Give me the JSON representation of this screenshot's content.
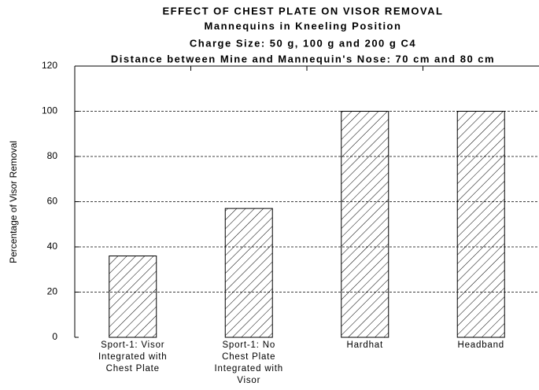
{
  "chart_data": {
    "type": "bar",
    "title": "EFFECT OF CHEST PLATE ON VISOR REMOVAL",
    "subtitle": [
      "Mannequins in Kneeling Position",
      "Charge Size: 50 g, 100 g and 200 g C4",
      "Distance between Mine and Mannequin's Nose: 70 cm and 80 cm"
    ],
    "ylabel": "Percentage of Visor Removal",
    "categories": [
      "Sport-1: Visor\nIntegrated with\nChest Plate",
      "Sport-1: No\nChest Plate\nIntegrated with\nVisor",
      "Hardhat",
      "Headband"
    ],
    "values": [
      36,
      57,
      100,
      100
    ],
    "color": "#000000",
    "ylim": [
      0,
      120
    ],
    "yticks": [
      0,
      20,
      40,
      60,
      80,
      100,
      120
    ],
    "grid": true
  }
}
